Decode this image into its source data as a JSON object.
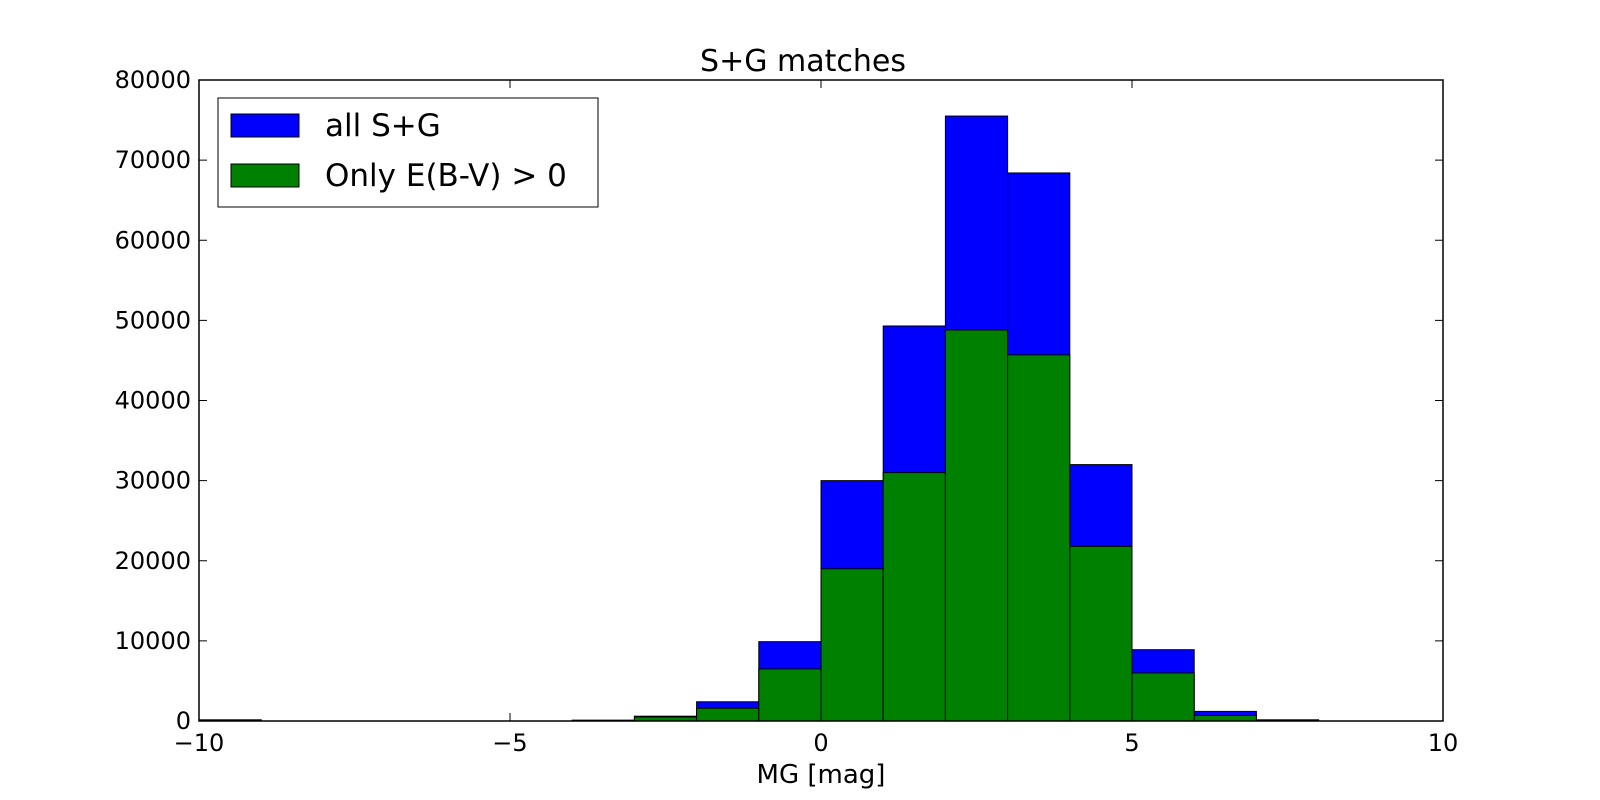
{
  "chart_data": {
    "type": "bar",
    "title": "S+G matches",
    "xlabel": "MG [mag]",
    "ylabel": "",
    "xlim": [
      -10,
      10
    ],
    "ylim": [
      0,
      80000
    ],
    "xticks": [
      -10,
      -5,
      0,
      5,
      10
    ],
    "xtick_labels": [
      "−10",
      "−5",
      "0",
      "5",
      "10"
    ],
    "yticks": [
      0,
      10000,
      20000,
      30000,
      40000,
      50000,
      60000,
      70000,
      80000
    ],
    "ytick_labels": [
      "0",
      "10000",
      "20000",
      "30000",
      "40000",
      "50000",
      "60000",
      "70000",
      "80000"
    ],
    "bin_edges": [
      -10,
      -9,
      -8,
      -7,
      -6,
      -5,
      -4,
      -3,
      -2,
      -1,
      0,
      1,
      2,
      3,
      4,
      5,
      6,
      7,
      8,
      9,
      10
    ],
    "series": [
      {
        "name": "all S+G",
        "color": "#0000ff",
        "values": [
          150,
          0,
          0,
          0,
          0,
          0,
          100,
          600,
          2400,
          9900,
          30000,
          49300,
          75500,
          68400,
          32000,
          8900,
          1200,
          150,
          0,
          0
        ]
      },
      {
        "name": "Only E(B-V) > 0",
        "color": "#008000",
        "values": [
          60,
          0,
          0,
          0,
          0,
          0,
          80,
          500,
          1600,
          6500,
          19000,
          31000,
          48800,
          45700,
          21800,
          6000,
          700,
          100,
          0,
          0
        ]
      }
    ],
    "legend_position": "upper-left",
    "grid": false
  }
}
